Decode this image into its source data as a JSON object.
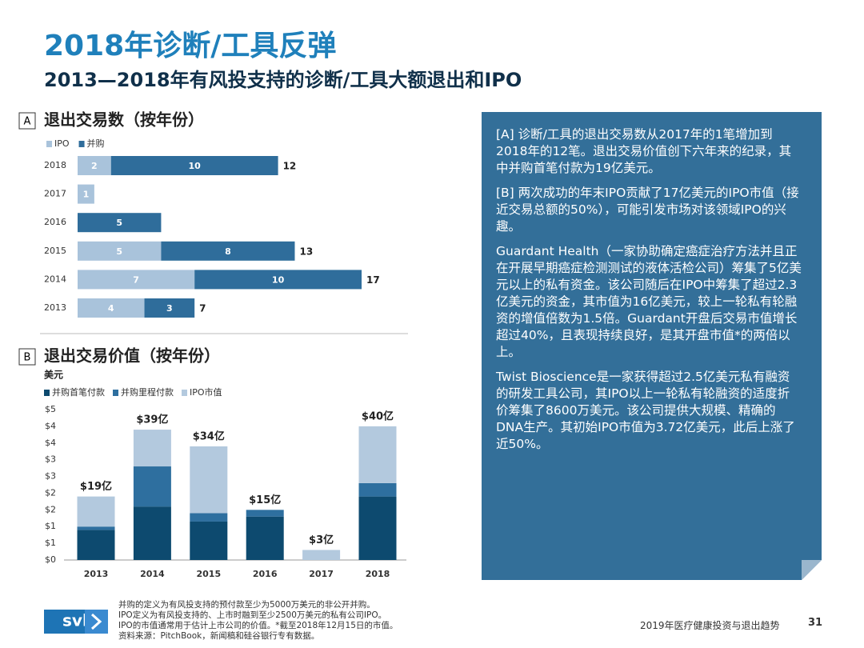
{
  "header": {
    "title": "2018年诊断/工具反弹",
    "subtitle": "2013—2018年有风投支持的诊断/工具大额退出和IPO"
  },
  "chart_data": [
    {
      "type": "hbar",
      "label": "A",
      "title": "退出交易数（按年份）",
      "categories": [
        "2018",
        "2017",
        "2016",
        "2015",
        "2014",
        "2013"
      ],
      "series": [
        {
          "name": "IPO",
          "color": "#a9c3db",
          "values": [
            2,
            1,
            0,
            5,
            7,
            4
          ]
        },
        {
          "name": "并购",
          "color": "#2f6d9b",
          "values": [
            10,
            0,
            5,
            8,
            10,
            3
          ]
        }
      ],
      "totals": [
        12,
        null,
        null,
        13,
        17,
        7
      ]
    },
    {
      "type": "bar",
      "label": "B",
      "title": "退出交易价值（按年份）",
      "ylabel": "美元",
      "categories": [
        "2013",
        "2014",
        "2015",
        "2016",
        "2017",
        "2018"
      ],
      "series": [
        {
          "name": "并购首笔付款",
          "color": "#0d4a6f",
          "values": [
            0.9,
            1.6,
            1.15,
            1.3,
            0,
            1.9
          ]
        },
        {
          "name": "并购里程付款",
          "color": "#2e6f9f",
          "values": [
            0.1,
            1.2,
            0.25,
            0.2,
            0,
            0.4
          ]
        },
        {
          "name": "IPO市值",
          "color": "#b3c9de",
          "values": [
            0.9,
            1.1,
            2.0,
            0,
            0.3,
            1.7
          ]
        }
      ],
      "totals": [
        1.9,
        3.9,
        3.4,
        1.5,
        0.3,
        4.0
      ],
      "total_labels": [
        "$19亿",
        "$39亿",
        "$34亿",
        "$15亿",
        "$3亿",
        "$40亿"
      ],
      "ylim": [
        0,
        4.5
      ],
      "yticks": [
        {
          "value": 0,
          "label": "$0"
        },
        {
          "value": 0.5,
          "label": "$1"
        },
        {
          "value": 1,
          "label": "$1"
        },
        {
          "value": 1.5,
          "label": "$2"
        },
        {
          "value": 2,
          "label": "$2"
        },
        {
          "value": 2.5,
          "label": "$3"
        },
        {
          "value": 3,
          "label": "$3"
        },
        {
          "value": 3.5,
          "label": "$4"
        },
        {
          "value": 4,
          "label": "$4"
        },
        {
          "value": 4.5,
          "label": "$5"
        }
      ]
    }
  ],
  "sidebar": {
    "paragraphs": [
      "[A] 诊断/工具的退出交易数从2017年的1笔增加到2018年的12笔。退出交易价值创下六年来的纪录，其中并购首笔付款为19亿美元。",
      "[B] 两次成功的年末IPO贡献了17亿美元的IPO市值（接近交易总额的50%），可能引发市场对该领域IPO的兴趣。",
      "Guardant Health（一家协助确定癌症治疗方法并且正在开展早期癌症检测测试的液体活检公司）筹集了5亿美元以上的私有资金。该公司随后在IPO中筹集了超过2.3亿美元的资金，其市值为16亿美元，较上一轮私有轮融资的增值倍数为1.5倍。Guardant开盘后交易市值增长超过40%，且表现持续良好，是其开盘市值*的两倍以上。",
      "Twist Bioscience是一家获得超过2.5亿美元私有融资的研发工具公司，其IPO以上一轮私有轮融资的适度折价筹集了8600万美元。该公司提供大规模、精确的DNA生产。其初始IPO市值为3.72亿美元，此后上涨了近50%。"
    ]
  },
  "footer": {
    "logo": "svb",
    "notes": [
      "并购的定义为有风投支持的预付款至少为5000万美元的非公开并购。",
      "IPO定义为有风投支持的、上市时融到至少2500万美元的私有公司IPO。",
      "IPO的市值通常用于估计上市公司的价值。*截至2018年12月15日的市值。",
      "资料来源：PitchBook，新闻稿和硅谷银行专有数据。"
    ],
    "report": "2019年医疗健康投资与退出趋势",
    "page": "31"
  }
}
